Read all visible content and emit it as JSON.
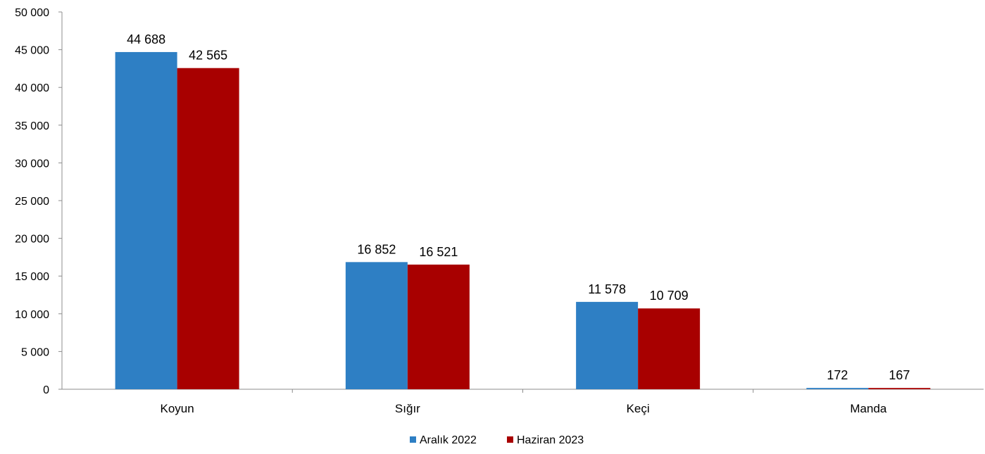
{
  "chart_data": {
    "type": "bar",
    "title": "",
    "xlabel": "",
    "ylabel": "",
    "categories": [
      "Koyun",
      "Sığır",
      "Keçi",
      "Manda"
    ],
    "series": [
      {
        "name": "Aralık 2022",
        "color": "#2e7fc4",
        "values": [
          44688,
          16852,
          11578,
          172
        ],
        "value_labels": [
          "44 688",
          "16 852",
          "11 578",
          "172"
        ]
      },
      {
        "name": "Haziran 2023",
        "color": "#a80000",
        "values": [
          42565,
          16521,
          10709,
          167
        ],
        "value_labels": [
          "42 565",
          "16 521",
          "10 709",
          "167"
        ]
      }
    ],
    "ylim": [
      0,
      50000
    ],
    "yticks": [
      0,
      5000,
      10000,
      15000,
      20000,
      25000,
      30000,
      35000,
      40000,
      45000,
      50000
    ],
    "ytick_labels": [
      "0",
      "5 000",
      "10 000",
      "15 000",
      "20 000",
      "25 000",
      "30 000",
      "35 000",
      "40 000",
      "45 000",
      "50 000"
    ],
    "grid": false,
    "legend_position": "bottom-center"
  }
}
